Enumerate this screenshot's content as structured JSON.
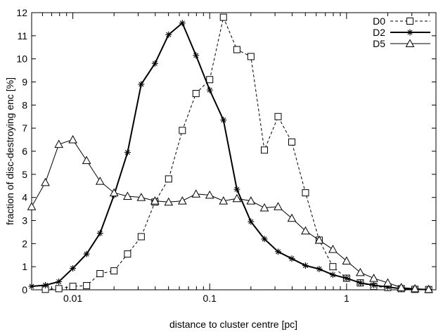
{
  "chart_data": {
    "type": "line",
    "title": "",
    "xlabel": "distance to cluster centre [pc]",
    "ylabel": "fraction of disc-destroying enc [%]",
    "xscale": "log",
    "xlim": [
      0.005,
      4.5
    ],
    "ylim": [
      0,
      12
    ],
    "x_ticks": [
      0.01,
      0.1,
      1
    ],
    "x_tick_labels": [
      "0.01",
      "0.1",
      "1"
    ],
    "y_ticks": [
      0,
      1,
      2,
      3,
      4,
      5,
      6,
      7,
      8,
      9,
      10,
      11,
      12
    ],
    "y_tick_labels": [
      "0",
      "1",
      "2",
      "3",
      "4",
      "5",
      "6",
      "7",
      "8",
      "9",
      "10",
      "11",
      "12"
    ],
    "legend_position": "top-right",
    "grid": false,
    "series": [
      {
        "name": "D0",
        "color": "#000000",
        "line_style": "dashed",
        "marker": "square",
        "x": [
          0.0063,
          0.0079,
          0.01,
          0.0126,
          0.0158,
          0.02,
          0.0251,
          0.0316,
          0.0398,
          0.0501,
          0.0631,
          0.0794,
          0.1,
          0.126,
          0.158,
          0.2,
          0.251,
          0.316,
          0.398,
          0.501,
          0.631,
          0.794,
          1.0,
          1.26,
          1.58,
          2.0,
          2.51,
          3.16,
          3.98
        ],
        "y": [
          0.02,
          0.05,
          0.15,
          0.18,
          0.7,
          0.82,
          1.55,
          2.3,
          3.8,
          4.8,
          6.9,
          8.5,
          9.1,
          11.8,
          10.4,
          10.1,
          6.05,
          7.5,
          6.4,
          4.2,
          2.15,
          1.0,
          0.5,
          0.3,
          0.15,
          0.1,
          0.05,
          0.02,
          0.01
        ]
      },
      {
        "name": "D2",
        "color": "#000000",
        "line_style": "solid-bold",
        "marker": "asterisk",
        "x": [
          0.005,
          0.0063,
          0.0079,
          0.01,
          0.0126,
          0.0158,
          0.02,
          0.0251,
          0.0316,
          0.0398,
          0.0501,
          0.0631,
          0.0794,
          0.1,
          0.126,
          0.158,
          0.2,
          0.251,
          0.316,
          0.398,
          0.501,
          0.631,
          0.794,
          1.0,
          1.26,
          1.58,
          2.0,
          2.51,
          3.16,
          3.98
        ],
        "y": [
          0.15,
          0.2,
          0.35,
          0.93,
          1.55,
          2.45,
          4.1,
          5.95,
          8.9,
          9.8,
          11.05,
          11.55,
          10.15,
          8.65,
          7.35,
          4.35,
          2.95,
          2.2,
          1.65,
          1.35,
          1.05,
          0.9,
          0.65,
          0.5,
          0.3,
          0.2,
          0.12,
          0.05,
          0.02,
          0.01
        ]
      },
      {
        "name": "D5",
        "color": "#000000",
        "line_style": "solid",
        "marker": "triangle",
        "x": [
          0.005,
          0.0063,
          0.0079,
          0.01,
          0.0126,
          0.0158,
          0.02,
          0.0251,
          0.0316,
          0.0398,
          0.0501,
          0.0631,
          0.0794,
          0.1,
          0.126,
          0.158,
          0.2,
          0.251,
          0.316,
          0.398,
          0.501,
          0.631,
          0.794,
          1.0,
          1.26,
          1.58,
          2.0,
          2.51,
          3.16,
          3.98
        ],
        "y": [
          3.6,
          4.65,
          6.3,
          6.5,
          5.6,
          4.7,
          4.2,
          4.05,
          4.0,
          3.85,
          3.8,
          3.85,
          4.15,
          4.1,
          3.85,
          3.95,
          3.85,
          3.55,
          3.6,
          3.1,
          2.55,
          2.15,
          1.75,
          1.25,
          0.75,
          0.5,
          0.3,
          0.1,
          0.05,
          0.02
        ]
      }
    ]
  }
}
